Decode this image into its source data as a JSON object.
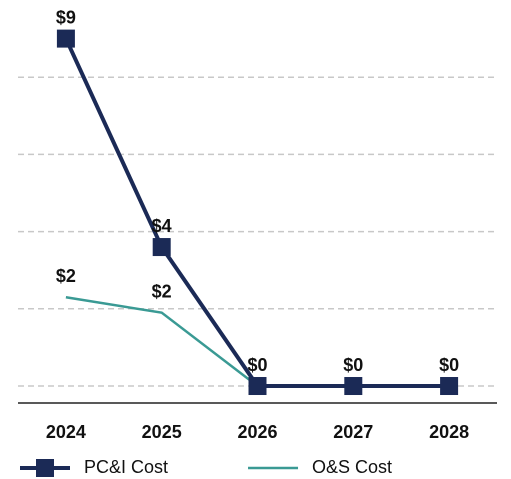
{
  "chart_data": {
    "type": "line",
    "categories": [
      "2024",
      "2025",
      "2026",
      "2027",
      "2028"
    ],
    "series": [
      {
        "name": "PC&I Cost",
        "color": "#1b2a56",
        "marker": "square",
        "values": [
          9,
          3.6,
          0,
          0,
          0
        ],
        "value_labels": [
          "$9",
          "$4",
          "$0",
          "$0",
          "$0"
        ]
      },
      {
        "name": "O&S Cost",
        "color": "#3a9a94",
        "marker": "none",
        "values": [
          2.3,
          1.9,
          0,
          0,
          0
        ],
        "value_labels": [
          "$2",
          "$2",
          null,
          null,
          null
        ]
      }
    ],
    "ylim": [
      -0.44,
      10
    ],
    "yticks": [
      0,
      2,
      4,
      6,
      8
    ],
    "grid": true,
    "legend": "bottom"
  }
}
